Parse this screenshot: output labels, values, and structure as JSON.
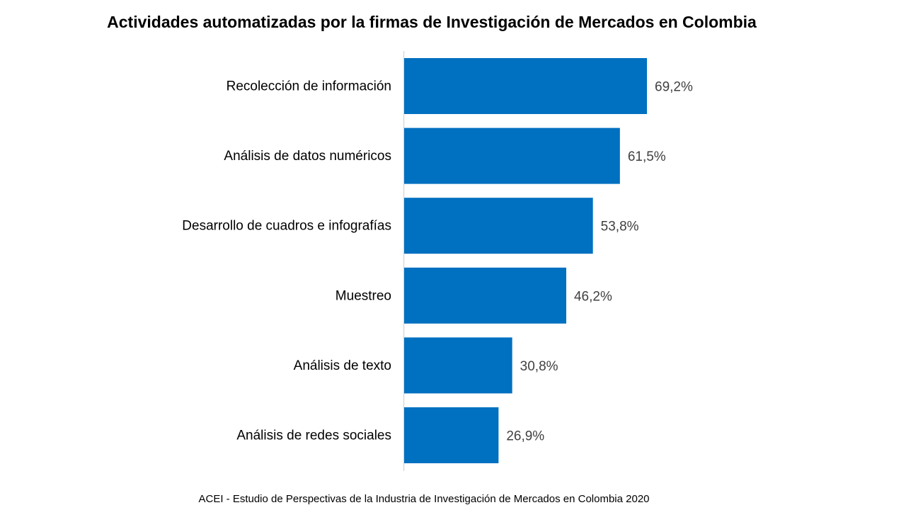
{
  "chart_data": {
    "type": "bar",
    "orientation": "horizontal",
    "title": "Actividades automatizadas por la firmas de Investigación de Mercados en Colombia",
    "categories": [
      "Recolección de información",
      "Análisis de datos numéricos",
      "Desarrollo de cuadros e infografías",
      "Muestreo",
      "Análisis de texto",
      "Análisis de redes sociales"
    ],
    "values": [
      69.2,
      61.5,
      53.8,
      46.2,
      30.8,
      26.9
    ],
    "data_labels": [
      "69,2%",
      "61,5%",
      "53,8%",
      "46,2%",
      "30,8%",
      "26,9%"
    ],
    "unit": "%",
    "xlim": [
      0,
      100
    ],
    "grid": false,
    "legend": "none",
    "bar_color": "#0070C0",
    "source": "ACEI - Estudio de Perspectivas de la Industria de Investigación de Mercados en Colombia 2020"
  }
}
